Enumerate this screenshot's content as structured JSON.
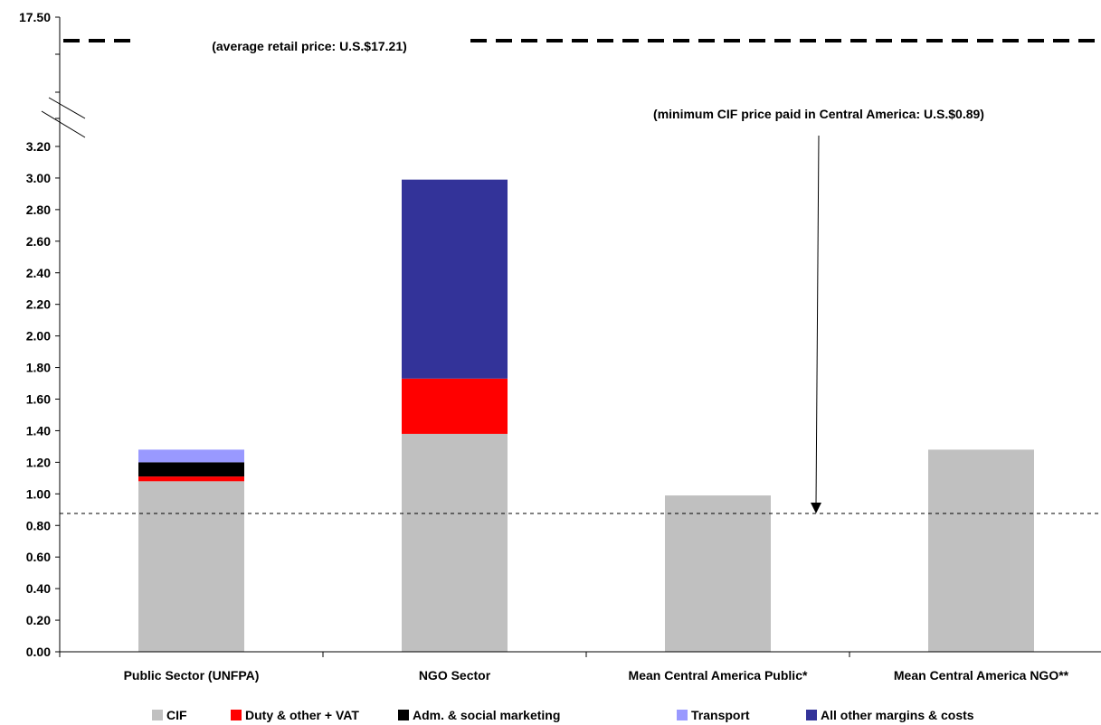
{
  "chart_data": {
    "type": "bar",
    "stacked": true,
    "categories": [
      "Public Sector (UNFPA)",
      "NGO Sector",
      "Mean Central America Public*",
      "Mean Central America NGO**"
    ],
    "series": [
      {
        "name": "CIF",
        "color": "#c0c0c0",
        "values": [
          1.08,
          1.38,
          0.99,
          1.28
        ]
      },
      {
        "name": "Duty & other + VAT",
        "color": "#ff0000",
        "values": [
          0.03,
          0.35,
          0,
          0
        ]
      },
      {
        "name": "Adm. & social marketing",
        "color": "#000000",
        "values": [
          0.09,
          0,
          0,
          0
        ]
      },
      {
        "name": "Transport",
        "color": "#9999ff",
        "values": [
          0.08,
          0,
          0,
          0
        ]
      },
      {
        "name": "All other margins & costs",
        "color": "#333399",
        "values": [
          0,
          1.26,
          0,
          0
        ]
      }
    ],
    "y_ticks": [
      "0.00",
      "0.20",
      "0.40",
      "0.60",
      "0.80",
      "1.00",
      "1.20",
      "1.40",
      "1.60",
      "1.80",
      "2.00",
      "2.20",
      "2.40",
      "2.60",
      "2.80",
      "3.00",
      "3.20"
    ],
    "y_top_label": "17.50",
    "ylim": [
      0,
      3.2
    ],
    "axis_break": true,
    "reference_lines": [
      {
        "name": "average-retail-price",
        "value": 17.21,
        "label": "(average retail price: U.S.$17.21)",
        "style": "thick-dashed"
      },
      {
        "name": "minimum-cif-price",
        "value": 0.89,
        "label": "(minimum CIF price paid in Central America: U.S.$0.89)",
        "style": "thin-dashed"
      }
    ],
    "legend_position": "bottom"
  }
}
